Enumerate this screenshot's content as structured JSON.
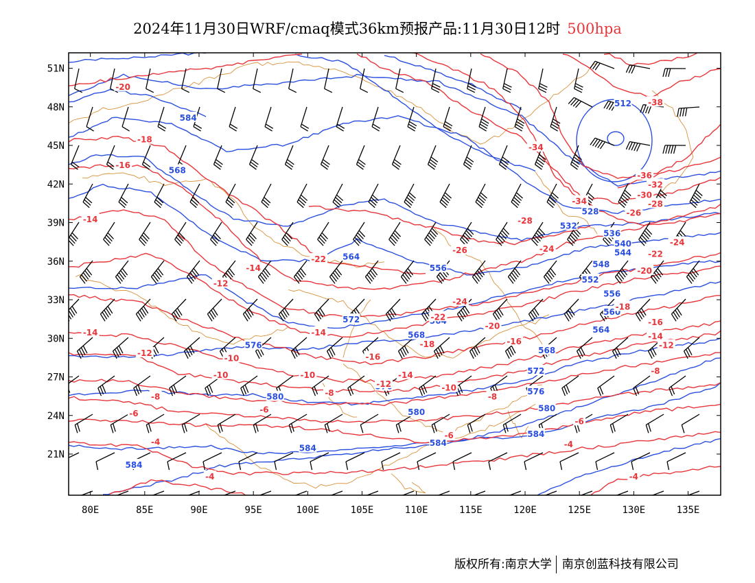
{
  "title": {
    "main": "2024年11月30日WRF/cmaq模式36km预报产品:11月30日12时",
    "level": "500hpa"
  },
  "axes": {
    "lat_labels": [
      "51N",
      "48N",
      "45N",
      "42N",
      "39N",
      "36N",
      "33N",
      "30N",
      "27N",
      "24N",
      "21N"
    ],
    "lon_labels": [
      "80E",
      "85E",
      "90E",
      "95E",
      "100E",
      "105E",
      "110E",
      "115E",
      "120E",
      "125E",
      "130E",
      "135E"
    ]
  },
  "colors": {
    "height_contour": "#2a4fe0",
    "temp_contour": "#e8353a",
    "boundary": "#d9913a",
    "wind_barb": "#000000"
  },
  "height_labels": [
    {
      "text": "584",
      "lon": 89,
      "lat": 47.2
    },
    {
      "text": "568",
      "lon": 88,
      "lat": 43.1
    },
    {
      "text": "564",
      "lon": 104,
      "lat": 36.4
    },
    {
      "text": "572",
      "lon": 104,
      "lat": 31.5
    },
    {
      "text": "576",
      "lon": 95,
      "lat": 29.5
    },
    {
      "text": "568",
      "lon": 110,
      "lat": 30.3
    },
    {
      "text": "580",
      "lon": 97,
      "lat": 25.5
    },
    {
      "text": "584",
      "lon": 100,
      "lat": 21.5
    },
    {
      "text": "584",
      "lon": 84,
      "lat": 20.2
    },
    {
      "text": "512",
      "lon": 129,
      "lat": 48.3
    },
    {
      "text": "528",
      "lon": 126,
      "lat": 39.9
    },
    {
      "text": "532",
      "lon": 124,
      "lat": 38.8
    },
    {
      "text": "536",
      "lon": 128,
      "lat": 38.2
    },
    {
      "text": "540",
      "lon": 129,
      "lat": 37.4
    },
    {
      "text": "544",
      "lon": 129,
      "lat": 36.7
    },
    {
      "text": "548",
      "lon": 127,
      "lat": 35.8
    },
    {
      "text": "552",
      "lon": 126,
      "lat": 34.6
    },
    {
      "text": "556",
      "lon": 128,
      "lat": 33.5
    },
    {
      "text": "560",
      "lon": 128,
      "lat": 32.1
    },
    {
      "text": "564",
      "lon": 127,
      "lat": 30.7
    },
    {
      "text": "568",
      "lon": 122,
      "lat": 29.1
    },
    {
      "text": "572",
      "lon": 121,
      "lat": 27.5
    },
    {
      "text": "576",
      "lon": 121,
      "lat": 25.9
    },
    {
      "text": "580",
      "lon": 122,
      "lat": 24.6
    },
    {
      "text": "584",
      "lon": 121,
      "lat": 22.6
    },
    {
      "text": "556",
      "lon": 112,
      "lat": 35.5
    },
    {
      "text": "560",
      "lon": 114,
      "lat": 32.9
    },
    {
      "text": "564",
      "lon": 112,
      "lat": 31.4
    },
    {
      "text": "576",
      "lon": 107,
      "lat": 26.3
    },
    {
      "text": "580",
      "lon": 110,
      "lat": 24.3
    },
    {
      "text": "584",
      "lon": 112,
      "lat": 21.9
    }
  ],
  "temp_labels": [
    {
      "text": "-20",
      "lon": 83,
      "lat": 49.6
    },
    {
      "text": "-18",
      "lon": 85,
      "lat": 45.5
    },
    {
      "text": "-16",
      "lon": 83,
      "lat": 43.5
    },
    {
      "text": "-14",
      "lon": 80,
      "lat": 39.3
    },
    {
      "text": "-14",
      "lon": 95,
      "lat": 35.5
    },
    {
      "text": "-12",
      "lon": 92,
      "lat": 34.3
    },
    {
      "text": "-14",
      "lon": 80,
      "lat": 30.5
    },
    {
      "text": "-12",
      "lon": 85,
      "lat": 28.9
    },
    {
      "text": "-10",
      "lon": 93,
      "lat": 28.5
    },
    {
      "text": "-10",
      "lon": 92,
      "lat": 27.2
    },
    {
      "text": "-8",
      "lon": 86,
      "lat": 25.5
    },
    {
      "text": "-6",
      "lon": 84,
      "lat": 24.2
    },
    {
      "text": "-6",
      "lon": 96,
      "lat": 24.5
    },
    {
      "text": "-4",
      "lon": 86,
      "lat": 22.0
    },
    {
      "text": "-4",
      "lon": 91,
      "lat": 19.3
    },
    {
      "text": "-22",
      "lon": 101,
      "lat": 36.2
    },
    {
      "text": "-14",
      "lon": 101,
      "lat": 30.5
    },
    {
      "text": "-10",
      "lon": 100,
      "lat": 27.2
    },
    {
      "text": "-8",
      "lon": 102,
      "lat": 25.8
    },
    {
      "text": "-16",
      "lon": 106,
      "lat": 28.6
    },
    {
      "text": "-14",
      "lon": 109,
      "lat": 27.2
    },
    {
      "text": "-12",
      "lon": 107,
      "lat": 26.5
    },
    {
      "text": "-10",
      "lon": 113,
      "lat": 26.2
    },
    {
      "text": "-8",
      "lon": 117,
      "lat": 25.5
    },
    {
      "text": "-6",
      "lon": 113,
      "lat": 22.5
    },
    {
      "text": "-24",
      "lon": 114,
      "lat": 32.9
    },
    {
      "text": "-22",
      "lon": 112,
      "lat": 31.7
    },
    {
      "text": "-20",
      "lon": 117,
      "lat": 31.0
    },
    {
      "text": "-18",
      "lon": 111,
      "lat": 29.6
    },
    {
      "text": "-16",
      "lon": 119,
      "lat": 29.8
    },
    {
      "text": "-26",
      "lon": 114,
      "lat": 36.9
    },
    {
      "text": "-28",
      "lon": 120,
      "lat": 39.2
    },
    {
      "text": "-24",
      "lon": 122,
      "lat": 37.0
    },
    {
      "text": "-34",
      "lon": 121,
      "lat": 44.9
    },
    {
      "text": "-38",
      "lon": 132,
      "lat": 48.4
    },
    {
      "text": "-36",
      "lon": 131,
      "lat": 42.7
    },
    {
      "text": "-34",
      "lon": 125,
      "lat": 40.7
    },
    {
      "text": "-32",
      "lon": 132,
      "lat": 42.0
    },
    {
      "text": "-30",
      "lon": 131,
      "lat": 41.2
    },
    {
      "text": "-28",
      "lon": 132,
      "lat": 40.5
    },
    {
      "text": "-26",
      "lon": 130,
      "lat": 39.8
    },
    {
      "text": "-24",
      "lon": 134,
      "lat": 37.5
    },
    {
      "text": "-22",
      "lon": 132,
      "lat": 36.6
    },
    {
      "text": "-20",
      "lon": 131,
      "lat": 35.3
    },
    {
      "text": "-18",
      "lon": 129,
      "lat": 32.5
    },
    {
      "text": "-16",
      "lon": 132,
      "lat": 31.3
    },
    {
      "text": "-14",
      "lon": 132,
      "lat": 30.2
    },
    {
      "text": "-12",
      "lon": 133,
      "lat": 29.5
    },
    {
      "text": "-8",
      "lon": 132,
      "lat": 27.5
    },
    {
      "text": "-6",
      "lon": 125,
      "lat": 23.6
    },
    {
      "text": "-4",
      "lon": 124,
      "lat": 21.8
    },
    {
      "text": "-4",
      "lon": 130,
      "lat": 19.3
    }
  ],
  "footer": {
    "copyright": "版权所有:南京大学",
    "company": "南京创蓝科技有限公司"
  }
}
